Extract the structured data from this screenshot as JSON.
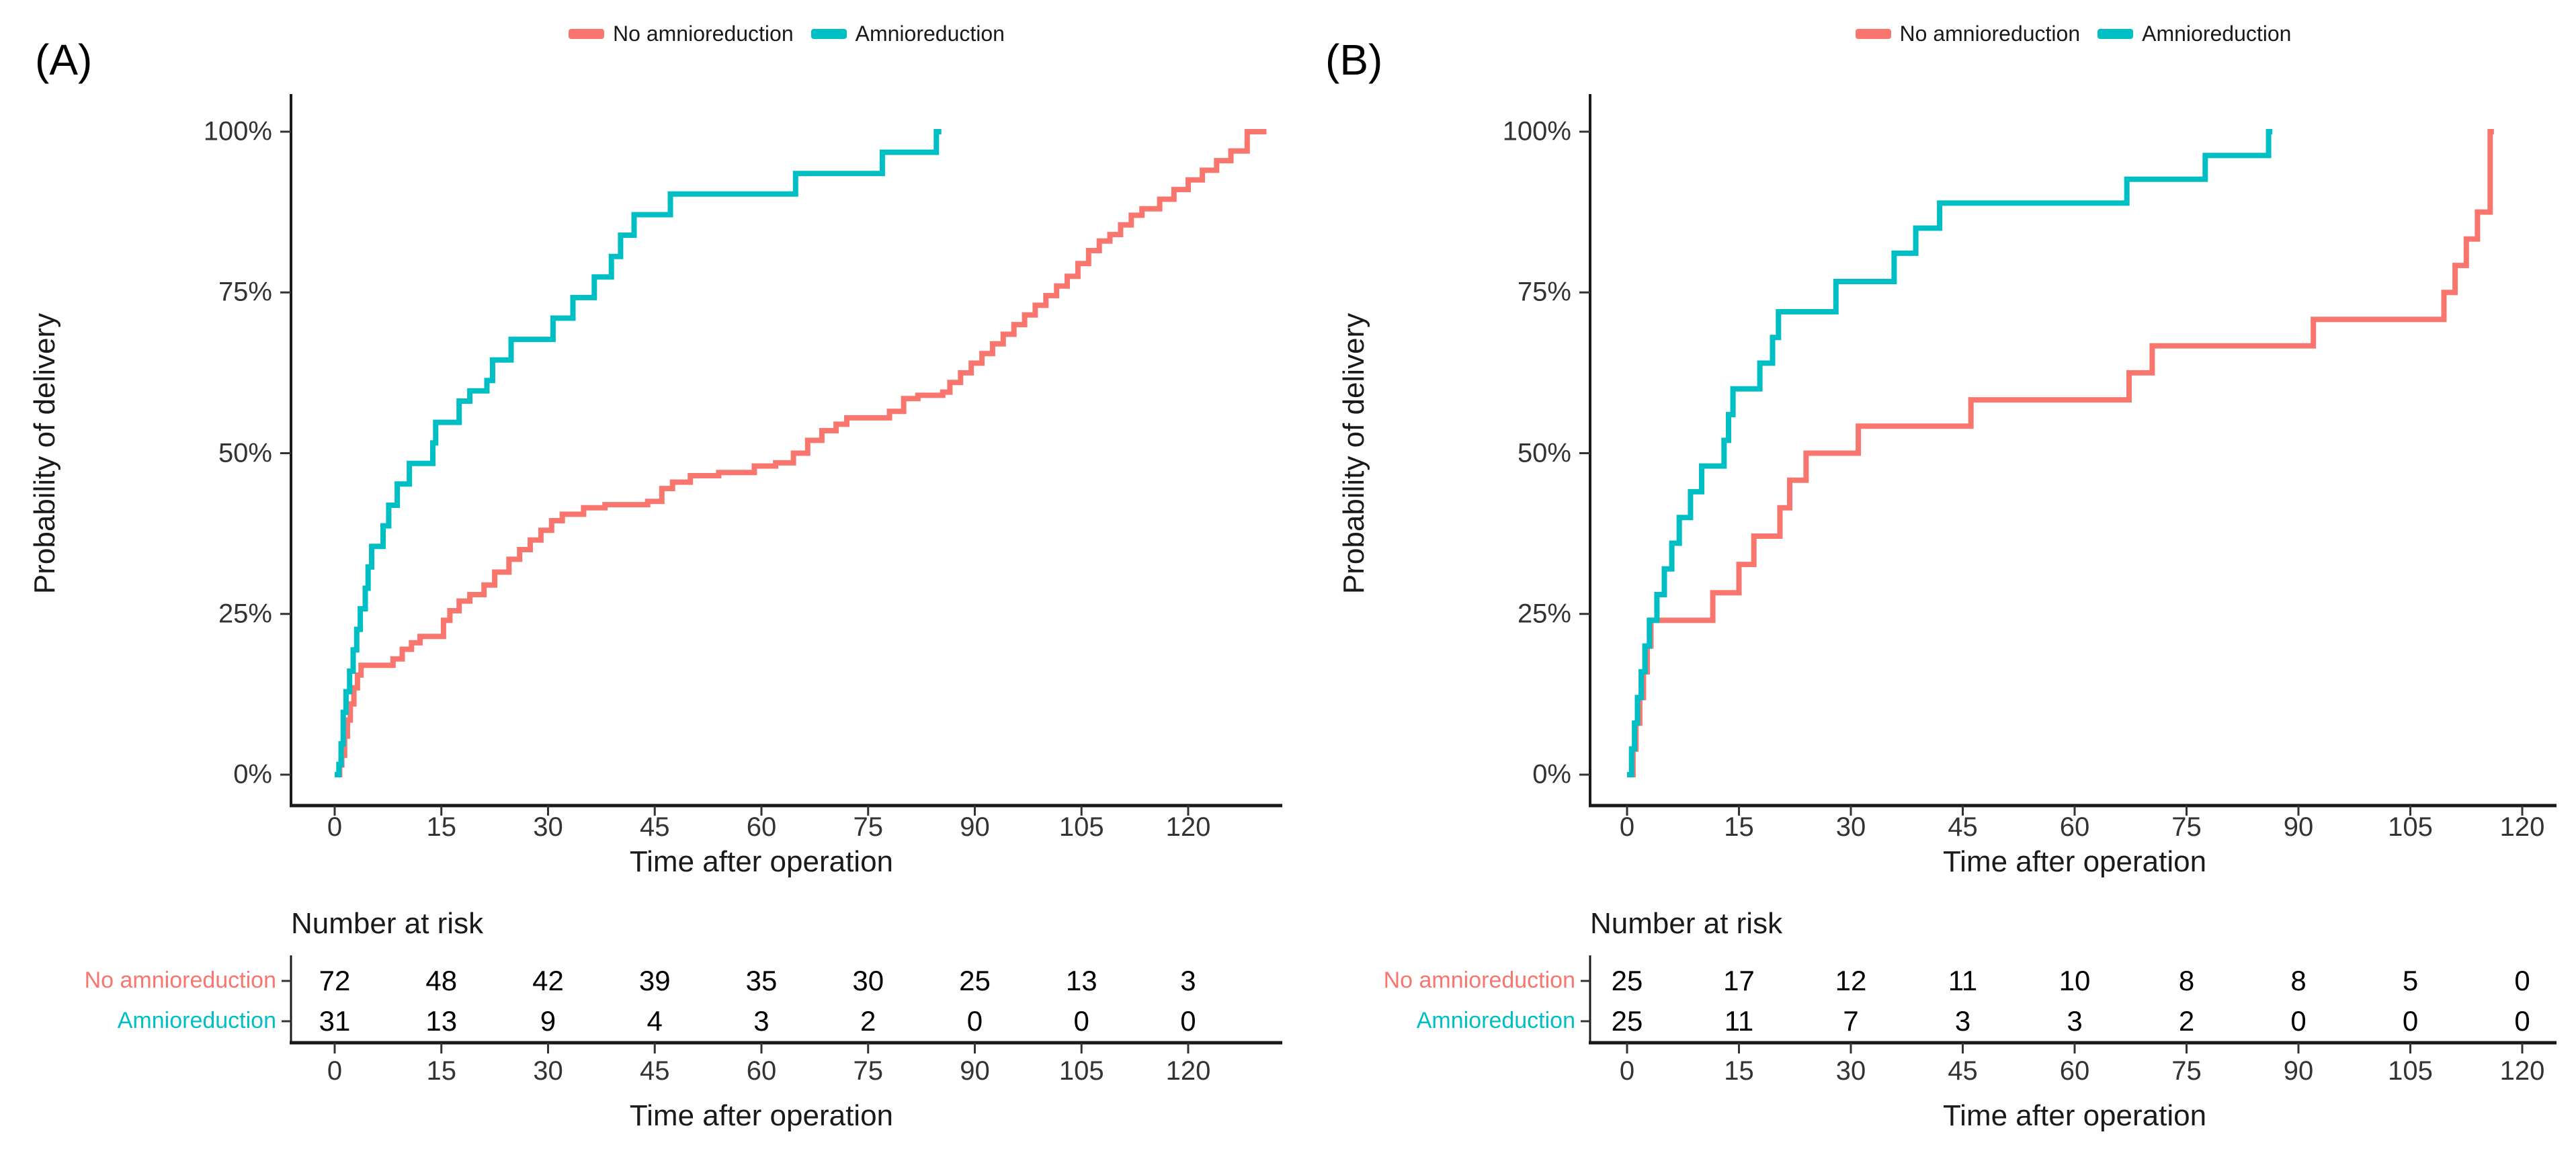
{
  "figure": {
    "background": "#ffffff",
    "text_color": "#1a1a1a",
    "accent_red": "#F8766D",
    "accent_teal": "#00BFC4"
  },
  "chart_data": [
    {
      "type": "line",
      "subtype": "kaplan-meier-step",
      "panel_label": "(A)",
      "xlabel": "Time after operation",
      "ylabel": "Probability of delivery",
      "xlim": [
        0,
        133
      ],
      "ylim": [
        0,
        100
      ],
      "x_ticks": [
        0,
        15,
        30,
        45,
        60,
        75,
        90,
        105,
        120
      ],
      "y_ticks": [
        "0%",
        "25%",
        "50%",
        "75%",
        "100%"
      ],
      "grid": false,
      "legend_position": "top",
      "series": [
        {
          "name": "No amnioreduction",
          "color": "#F8766D",
          "steps": [
            [
              0,
              0
            ],
            [
              0.7,
              1.5
            ],
            [
              1,
              3
            ],
            [
              1.4,
              6
            ],
            [
              1.8,
              8.5
            ],
            [
              2.2,
              11
            ],
            [
              2.7,
              13.5
            ],
            [
              3.2,
              15.5
            ],
            [
              3.7,
              17
            ],
            [
              8.2,
              18
            ],
            [
              9.5,
              19.5
            ],
            [
              10.8,
              20.5
            ],
            [
              12,
              21.5
            ],
            [
              15.3,
              24
            ],
            [
              16.2,
              25.5
            ],
            [
              17.5,
              27
            ],
            [
              19,
              28
            ],
            [
              21,
              29.5
            ],
            [
              22.5,
              31.5
            ],
            [
              24.5,
              33.5
            ],
            [
              26,
              35
            ],
            [
              27.5,
              36.5
            ],
            [
              29,
              38
            ],
            [
              30.5,
              39.5
            ],
            [
              32,
              40.5
            ],
            [
              35,
              41.5
            ],
            [
              38,
              42
            ],
            [
              44,
              42.5
            ],
            [
              46,
              44.5
            ],
            [
              47.5,
              45.5
            ],
            [
              50,
              46.5
            ],
            [
              54,
              47
            ],
            [
              59,
              48
            ],
            [
              62,
              48.5
            ],
            [
              64.5,
              50
            ],
            [
              66.5,
              52
            ],
            [
              68.5,
              53.5
            ],
            [
              70.5,
              54.5
            ],
            [
              72,
              55.5
            ],
            [
              78,
              56.5
            ],
            [
              80,
              58.5
            ],
            [
              82,
              59
            ],
            [
              85.5,
              59.5
            ],
            [
              86.5,
              61
            ],
            [
              88,
              62.5
            ],
            [
              89.5,
              64
            ],
            [
              91,
              65.5
            ],
            [
              92.5,
              67
            ],
            [
              94,
              68.5
            ],
            [
              95.5,
              70
            ],
            [
              97,
              71.5
            ],
            [
              98.5,
              73
            ],
            [
              100,
              74.5
            ],
            [
              101.5,
              76
            ],
            [
              103,
              77.5
            ],
            [
              104.5,
              79.5
            ],
            [
              106,
              81.5
            ],
            [
              107.5,
              83
            ],
            [
              109,
              84
            ],
            [
              110.5,
              85.5
            ],
            [
              112,
              87
            ],
            [
              113.5,
              88
            ],
            [
              116,
              89.5
            ],
            [
              118,
              91
            ],
            [
              120,
              92.5
            ],
            [
              122,
              94
            ],
            [
              124,
              95.5
            ],
            [
              126,
              97
            ],
            [
              128.3,
              100
            ],
            [
              131,
              100
            ]
          ]
        },
        {
          "name": "Amnioreduction",
          "color": "#00BFC4",
          "steps": [
            [
              0,
              0
            ],
            [
              0.6,
              1.6
            ],
            [
              0.9,
              4.8
            ],
            [
              1.2,
              9.7
            ],
            [
              1.6,
              12.9
            ],
            [
              2.1,
              16.1
            ],
            [
              2.6,
              19.4
            ],
            [
              3.1,
              22.6
            ],
            [
              3.6,
              25.8
            ],
            [
              4.3,
              29
            ],
            [
              4.7,
              32.3
            ],
            [
              5.2,
              35.5
            ],
            [
              6.8,
              38.7
            ],
            [
              7.6,
              41.9
            ],
            [
              8.8,
              45.2
            ],
            [
              10.5,
              48.4
            ],
            [
              13.8,
              51.6
            ],
            [
              14.2,
              54.8
            ],
            [
              17.5,
              58.1
            ],
            [
              19,
              59.7
            ],
            [
              21.4,
              61.3
            ],
            [
              22.2,
              64.5
            ],
            [
              24.8,
              67.7
            ],
            [
              30.7,
              71
            ],
            [
              33.5,
              74.2
            ],
            [
              36.5,
              77.4
            ],
            [
              38.9,
              80.6
            ],
            [
              40.2,
              83.9
            ],
            [
              42.1,
              87.1
            ],
            [
              47.2,
              90.3
            ],
            [
              64.8,
              93.5
            ],
            [
              77,
              96.8
            ],
            [
              84.6,
              100
            ],
            [
              85.3,
              100
            ]
          ]
        }
      ],
      "risk_table": {
        "title": "Number at risk",
        "xlabel": "Time after operation",
        "x_ticks": [
          0,
          15,
          30,
          45,
          60,
          75,
          90,
          105,
          120
        ],
        "rows": [
          {
            "label": "No amnioreduction",
            "color": "#F8766D",
            "counts": [
              72,
              48,
              42,
              39,
              35,
              30,
              25,
              13,
              3
            ]
          },
          {
            "label": "Amnioreduction",
            "color": "#00BFC4",
            "counts": [
              31,
              13,
              9,
              4,
              3,
              2,
              0,
              0,
              0
            ]
          }
        ]
      }
    },
    {
      "type": "line",
      "subtype": "kaplan-meier-step",
      "panel_label": "(B)",
      "xlabel": "Time after operation",
      "ylabel": "Probability of delivery",
      "xlim": [
        0,
        122
      ],
      "ylim": [
        0,
        100
      ],
      "x_ticks": [
        0,
        15,
        30,
        45,
        60,
        75,
        90,
        105,
        120
      ],
      "y_ticks": [
        "0%",
        "25%",
        "50%",
        "75%",
        "100%"
      ],
      "grid": false,
      "legend_position": "top",
      "series": [
        {
          "name": "No amnioreduction",
          "color": "#F8766D",
          "steps": [
            [
              0,
              0
            ],
            [
              0.8,
              4
            ],
            [
              1.2,
              8
            ],
            [
              1.7,
              12
            ],
            [
              2.2,
              16
            ],
            [
              2.7,
              20
            ],
            [
              3.2,
              24
            ],
            [
              11.5,
              28.3
            ],
            [
              15,
              32.7
            ],
            [
              17,
              37.1
            ],
            [
              20.5,
              41.5
            ],
            [
              21.8,
              45.8
            ],
            [
              24,
              50
            ],
            [
              31,
              54.2
            ],
            [
              46.1,
              58.3
            ],
            [
              67.3,
              62.5
            ],
            [
              70.4,
              66.7
            ],
            [
              92,
              70.8
            ],
            [
              109.5,
              75
            ],
            [
              111,
              79.2
            ],
            [
              112.5,
              83.3
            ],
            [
              114,
              87.5
            ],
            [
              115.7,
              100
            ],
            [
              116.2,
              100
            ]
          ]
        },
        {
          "name": "Amnioreduction",
          "color": "#00BFC4",
          "steps": [
            [
              0,
              0
            ],
            [
              0.6,
              4
            ],
            [
              1,
              8
            ],
            [
              1.4,
              12
            ],
            [
              1.9,
              16
            ],
            [
              2.4,
              20
            ],
            [
              3,
              24
            ],
            [
              4,
              28
            ],
            [
              5,
              32
            ],
            [
              6,
              36
            ],
            [
              7,
              40
            ],
            [
              8.5,
              44
            ],
            [
              10,
              48
            ],
            [
              13,
              52
            ],
            [
              13.6,
              56
            ],
            [
              14.2,
              60
            ],
            [
              17.8,
              64
            ],
            [
              19.5,
              68
            ],
            [
              20.3,
              72
            ],
            [
              28,
              76.7
            ],
            [
              35.8,
              81.1
            ],
            [
              38.7,
              85
            ],
            [
              41.9,
              88.9
            ],
            [
              67,
              92.6
            ],
            [
              77.5,
              96.3
            ],
            [
              86,
              100
            ],
            [
              86.5,
              100
            ]
          ]
        }
      ],
      "risk_table": {
        "title": "Number at risk",
        "xlabel": "Time after operation",
        "x_ticks": [
          0,
          15,
          30,
          45,
          60,
          75,
          90,
          105,
          120
        ],
        "rows": [
          {
            "label": "No amnioreduction",
            "color": "#F8766D",
            "counts": [
              25,
              17,
              12,
              11,
              10,
              8,
              8,
              5,
              0
            ]
          },
          {
            "label": "Amnioreduction",
            "color": "#00BFC4",
            "counts": [
              25,
              11,
              7,
              3,
              3,
              2,
              0,
              0,
              0
            ]
          }
        ]
      }
    }
  ]
}
